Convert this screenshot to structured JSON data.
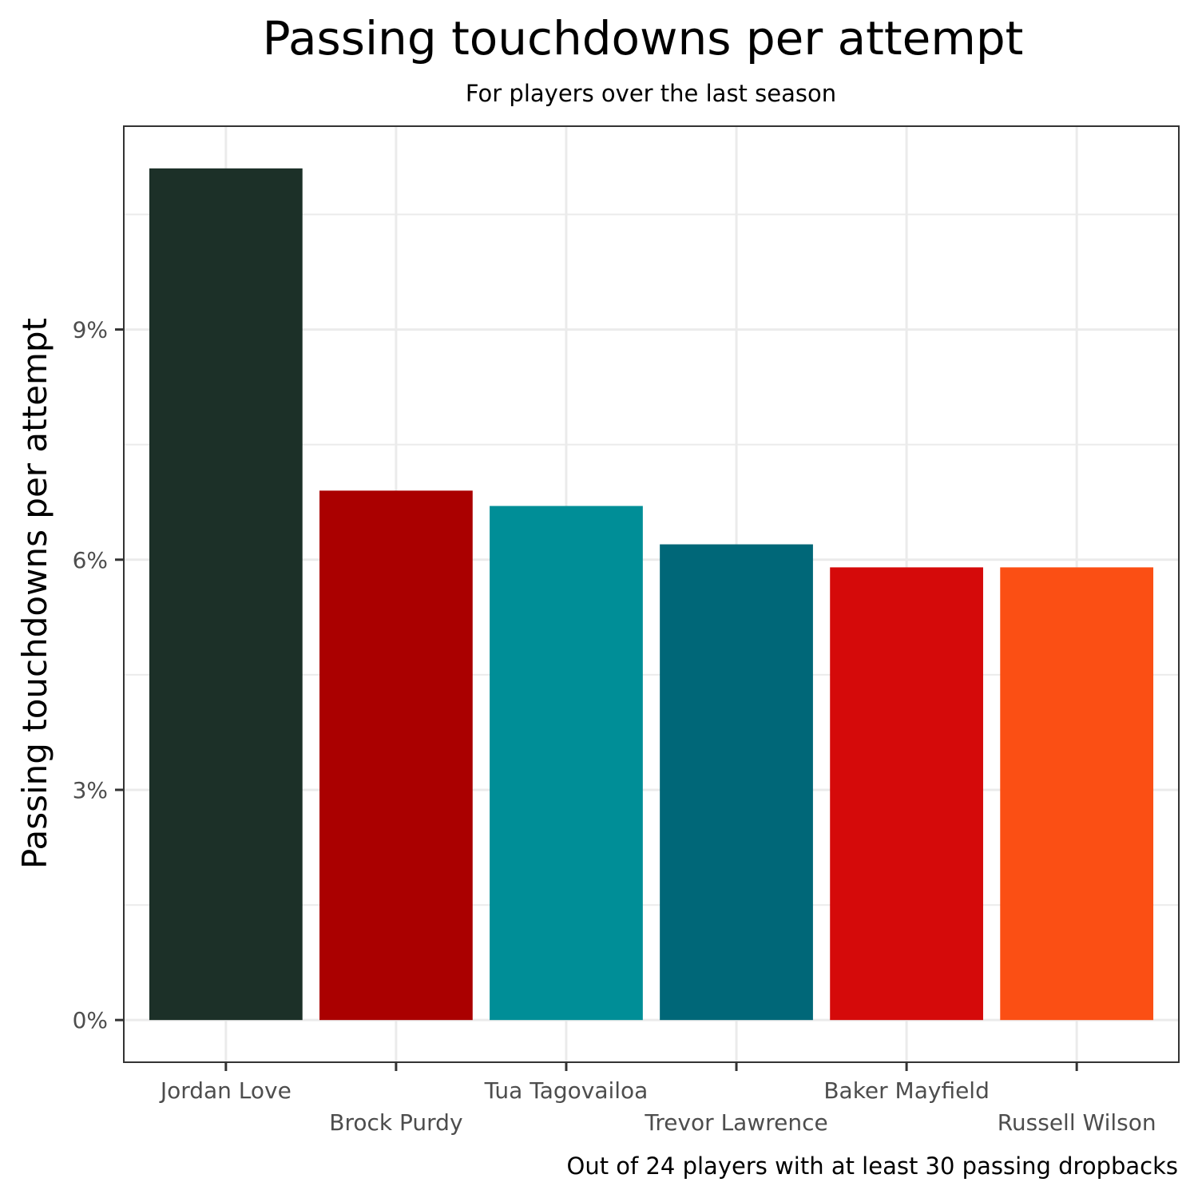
{
  "chart_data": {
    "type": "bar",
    "title": "Passing touchdowns per attempt",
    "subtitle": "For players over the last season",
    "caption": "Out of 24 players with at least 30 passing dropbacks",
    "xlabel": "",
    "ylabel": "Passing touchdowns per attempt",
    "categories": [
      "Jordan Love",
      "Brock Purdy",
      "Tua Tagovailoa",
      "Trevor Lawrence",
      "Baker Mayfield",
      "Russell Wilson"
    ],
    "values": [
      0.111,
      0.069,
      0.067,
      0.062,
      0.059,
      0.059
    ],
    "colors": [
      "#1c3028",
      "#aa0000",
      "#008e97",
      "#006778",
      "#d50a0a",
      "#fb4f14"
    ],
    "ylim": [
      -0.0055,
      0.1165
    ],
    "yticks": [
      0,
      0.03,
      0.06,
      0.09
    ],
    "ytick_labels": [
      "0%",
      "3%",
      "6%",
      "9%"
    ],
    "grid": true,
    "legend": "none"
  }
}
